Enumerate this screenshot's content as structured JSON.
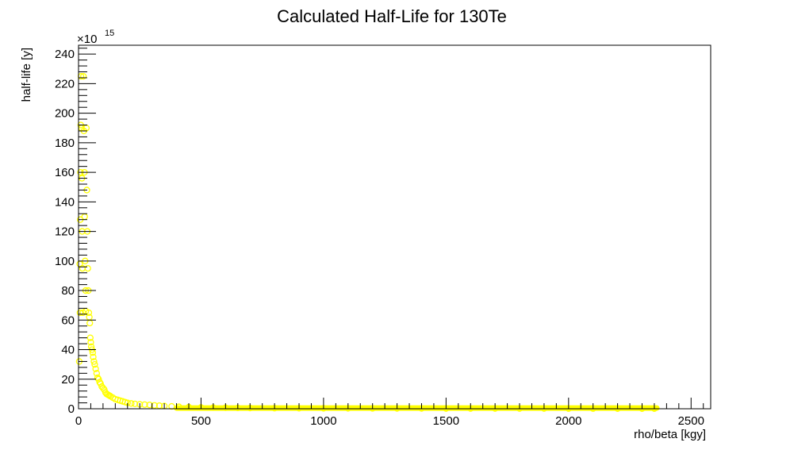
{
  "chart_data": {
    "type": "scatter",
    "title": "Calculated Half-Life for 130Te",
    "xlabel": "rho/beta [kgy]",
    "ylabel": "half-life [y]",
    "y_multiplier": {
      "base": "×10",
      "exponent": "15"
    },
    "xlim": [
      0,
      2580
    ],
    "ylim": [
      0,
      246
    ],
    "x_ticks": [
      0,
      500,
      1000,
      1500,
      2000,
      2500
    ],
    "x_tick_labels": [
      "0",
      "500",
      "1000",
      "1500",
      "2000",
      "2500"
    ],
    "y_ticks": [
      0,
      20,
      40,
      60,
      80,
      100,
      120,
      140,
      160,
      180,
      200,
      220,
      240
    ],
    "y_tick_labels": [
      "0",
      "20",
      "40",
      "60",
      "80",
      "100",
      "120",
      "140",
      "160",
      "180",
      "200",
      "220",
      "240"
    ],
    "grid": false,
    "marker": "open-circle",
    "color": "#ffff00",
    "points": [
      [
        3,
        32
      ],
      [
        5,
        98
      ],
      [
        6,
        65
      ],
      [
        7,
        128
      ],
      [
        8,
        160
      ],
      [
        9,
        192
      ],
      [
        10,
        225
      ],
      [
        12,
        190
      ],
      [
        14,
        156
      ],
      [
        15,
        120
      ],
      [
        16,
        95
      ],
      [
        18,
        65
      ],
      [
        20,
        225
      ],
      [
        22,
        188
      ],
      [
        24,
        160
      ],
      [
        25,
        130
      ],
      [
        27,
        100
      ],
      [
        29,
        80
      ],
      [
        30,
        66
      ],
      [
        32,
        190
      ],
      [
        34,
        148
      ],
      [
        36,
        120
      ],
      [
        38,
        95
      ],
      [
        40,
        80
      ],
      [
        42,
        65
      ],
      [
        44,
        62
      ],
      [
        46,
        58
      ],
      [
        48,
        48
      ],
      [
        50,
        45
      ],
      [
        52,
        42
      ],
      [
        55,
        40
      ],
      [
        58,
        38
      ],
      [
        60,
        35
      ],
      [
        63,
        32
      ],
      [
        66,
        30
      ],
      [
        70,
        27
      ],
      [
        74,
        24
      ],
      [
        78,
        21
      ],
      [
        82,
        20
      ],
      [
        86,
        18
      ],
      [
        90,
        17
      ],
      [
        95,
        15
      ],
      [
        100,
        14
      ],
      [
        105,
        13
      ],
      [
        110,
        11
      ],
      [
        115,
        10
      ],
      [
        120,
        9.5
      ],
      [
        125,
        9
      ],
      [
        130,
        8.5
      ],
      [
        140,
        7.5
      ],
      [
        150,
        6.5
      ],
      [
        160,
        6
      ],
      [
        170,
        5.5
      ],
      [
        180,
        5
      ],
      [
        190,
        4.5
      ],
      [
        200,
        4
      ],
      [
        215,
        3.6
      ],
      [
        230,
        3.3
      ],
      [
        250,
        3
      ],
      [
        270,
        2.8
      ],
      [
        290,
        2.6
      ],
      [
        310,
        2.3
      ],
      [
        330,
        2.1
      ],
      [
        350,
        1.9
      ],
      [
        380,
        1.6
      ],
      [
        410,
        1.3
      ],
      [
        450,
        1.1
      ],
      [
        500,
        0.9
      ],
      [
        550,
        0.8
      ],
      [
        600,
        0.7
      ],
      [
        650,
        0.6
      ],
      [
        700,
        0.5
      ],
      [
        800,
        0.4
      ],
      [
        900,
        0.35
      ],
      [
        1000,
        0.3
      ],
      [
        1100,
        0.28
      ],
      [
        1200,
        0.25
      ],
      [
        1300,
        0.22
      ],
      [
        1400,
        0.2
      ],
      [
        1500,
        0.18
      ],
      [
        1600,
        0.17
      ],
      [
        1700,
        0.16
      ],
      [
        1800,
        0.15
      ],
      [
        1900,
        0.14
      ],
      [
        2000,
        0.13
      ],
      [
        2100,
        0.12
      ],
      [
        2200,
        0.11
      ],
      [
        2300,
        0.1
      ],
      [
        2350,
        0.1
      ]
    ]
  }
}
